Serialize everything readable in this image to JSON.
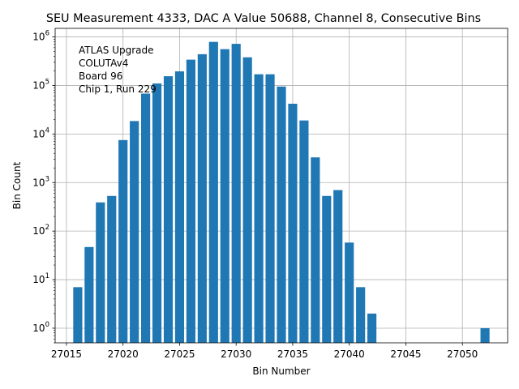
{
  "chart_data": {
    "type": "bar",
    "title": "SEU Measurement 4333, DAC A Value 50688, Channel 8, Consecutive Bins",
    "xlabel": "Bin Number",
    "ylabel": "Bin Count",
    "yscale": "log",
    "xlim": [
      27014,
      27054
    ],
    "ylim": [
      0.5,
      1500000
    ],
    "grid": true,
    "bar_color": "#1f77b4",
    "annotation_lines": [
      "ATLAS Upgrade",
      "COLUTAv4",
      " Board 96",
      "Chip 1, Run 229"
    ],
    "x_ticks": [
      {
        "value": 27015,
        "label": "27015"
      },
      {
        "value": 27020,
        "label": "27020"
      },
      {
        "value": 27025,
        "label": "27025"
      },
      {
        "value": 27030,
        "label": "27030"
      },
      {
        "value": 27035,
        "label": "27035"
      },
      {
        "value": 27040,
        "label": "27040"
      },
      {
        "value": 27045,
        "label": "27045"
      },
      {
        "value": 27050,
        "label": "27050"
      }
    ],
    "y_ticks": [
      {
        "value": 1,
        "base": "10",
        "exp": "0"
      },
      {
        "value": 10,
        "base": "10",
        "exp": "1"
      },
      {
        "value": 100,
        "base": "10",
        "exp": "2"
      },
      {
        "value": 1000,
        "base": "10",
        "exp": "3"
      },
      {
        "value": 10000,
        "base": "10",
        "exp": "4"
      },
      {
        "value": 100000,
        "base": "10",
        "exp": "5"
      },
      {
        "value": 1000000,
        "base": "10",
        "exp": "6"
      }
    ],
    "x": [
      27016,
      27017,
      27018,
      27019,
      27020,
      27021,
      27022,
      27023,
      27024,
      27025,
      27026,
      27027,
      27028,
      27029,
      27030,
      27031,
      27032,
      27033,
      27034,
      27035,
      27036,
      27037,
      27038,
      27039,
      27040,
      27041,
      27042,
      27052
    ],
    "values": [
      7,
      47,
      390,
      530,
      7500,
      18500,
      68000,
      110000,
      155000,
      195000,
      340000,
      440000,
      790000,
      560000,
      720000,
      380000,
      170000,
      170000,
      95000,
      42000,
      19000,
      3300,
      530,
      700,
      58,
      7,
      2,
      1
    ]
  }
}
